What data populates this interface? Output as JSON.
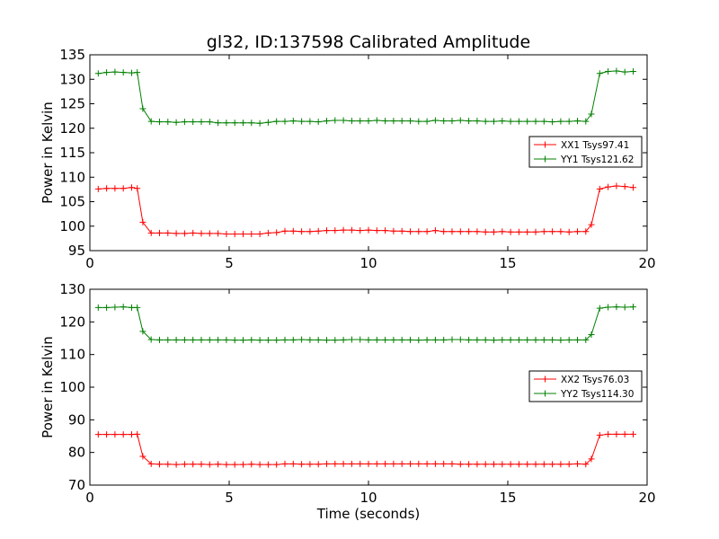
{
  "title": "gl32, ID:137598 Calibrated Amplitude",
  "chart_data": [
    {
      "type": "line",
      "title": "gl32, ID:137598 Calibrated Amplitude",
      "xlabel": "",
      "ylabel": "Power in Kelvin",
      "xlim": [
        0,
        20
      ],
      "ylim": [
        95,
        135
      ],
      "xticks": [
        0,
        5,
        10,
        15,
        20
      ],
      "yticks": [
        95,
        100,
        105,
        110,
        115,
        120,
        125,
        130,
        135
      ],
      "legend_position": "center-right",
      "grid": false,
      "x": [
        0.3,
        0.6,
        0.9,
        1.2,
        1.5,
        1.7,
        1.9,
        2.2,
        2.5,
        2.8,
        3.1,
        3.4,
        3.7,
        4.0,
        4.3,
        4.6,
        4.9,
        5.2,
        5.5,
        5.8,
        6.1,
        6.4,
        6.7,
        7.0,
        7.3,
        7.6,
        7.9,
        8.2,
        8.5,
        8.8,
        9.1,
        9.4,
        9.7,
        10.0,
        10.3,
        10.6,
        10.9,
        11.2,
        11.5,
        11.8,
        12.1,
        12.4,
        12.7,
        13.0,
        13.3,
        13.6,
        13.9,
        14.2,
        14.5,
        14.8,
        15.1,
        15.4,
        15.7,
        16.0,
        16.3,
        16.6,
        16.9,
        17.2,
        17.5,
        17.8,
        18.0,
        18.3,
        18.6,
        18.9,
        19.2,
        19.5
      ],
      "series": [
        {
          "name": "XX1 Tsys97.41",
          "color": "#ff0000",
          "values": [
            107.6,
            107.7,
            107.7,
            107.7,
            107.9,
            107.7,
            100.8,
            98.6,
            98.6,
            98.6,
            98.5,
            98.5,
            98.6,
            98.5,
            98.5,
            98.5,
            98.4,
            98.4,
            98.4,
            98.4,
            98.4,
            98.6,
            98.7,
            99.0,
            99.0,
            98.9,
            98.9,
            99.0,
            99.1,
            99.1,
            99.2,
            99.2,
            99.1,
            99.2,
            99.1,
            99.1,
            99.0,
            99.0,
            98.9,
            98.9,
            98.9,
            99.1,
            98.9,
            98.9,
            98.9,
            98.9,
            98.9,
            98.8,
            98.8,
            98.9,
            98.8,
            98.8,
            98.8,
            98.8,
            98.9,
            98.9,
            98.9,
            98.8,
            98.9,
            98.9,
            100.3,
            107.6,
            108.0,
            108.2,
            108.1,
            107.9
          ]
        },
        {
          "name": "YY1 Tsys121.62",
          "color": "#008000",
          "values": [
            131.2,
            131.4,
            131.5,
            131.4,
            131.3,
            131.4,
            124.0,
            121.4,
            121.3,
            121.3,
            121.2,
            121.3,
            121.3,
            121.3,
            121.3,
            121.1,
            121.1,
            121.1,
            121.1,
            121.1,
            121.0,
            121.2,
            121.4,
            121.4,
            121.5,
            121.4,
            121.4,
            121.3,
            121.5,
            121.6,
            121.6,
            121.5,
            121.5,
            121.5,
            121.6,
            121.5,
            121.5,
            121.5,
            121.5,
            121.4,
            121.4,
            121.6,
            121.5,
            121.5,
            121.6,
            121.5,
            121.5,
            121.4,
            121.4,
            121.5,
            121.4,
            121.4,
            121.4,
            121.4,
            121.4,
            121.3,
            121.4,
            121.4,
            121.5,
            121.4,
            122.9,
            131.2,
            131.6,
            131.7,
            131.5,
            131.6
          ]
        }
      ]
    },
    {
      "type": "line",
      "title": "",
      "xlabel": "Time (seconds)",
      "ylabel": "Power in Kelvin",
      "xlim": [
        0,
        20
      ],
      "ylim": [
        70,
        130
      ],
      "xticks": [
        0,
        5,
        10,
        15,
        20
      ],
      "yticks": [
        70,
        80,
        90,
        100,
        110,
        120,
        130
      ],
      "legend_position": "center-right",
      "grid": false,
      "x": [
        0.3,
        0.6,
        0.9,
        1.2,
        1.5,
        1.7,
        1.9,
        2.2,
        2.5,
        2.8,
        3.1,
        3.4,
        3.7,
        4.0,
        4.3,
        4.6,
        4.9,
        5.2,
        5.5,
        5.8,
        6.1,
        6.4,
        6.7,
        7.0,
        7.3,
        7.6,
        7.9,
        8.2,
        8.5,
        8.8,
        9.1,
        9.4,
        9.7,
        10.0,
        10.3,
        10.6,
        10.9,
        11.2,
        11.5,
        11.8,
        12.1,
        12.4,
        12.7,
        13.0,
        13.3,
        13.6,
        13.9,
        14.2,
        14.5,
        14.8,
        15.1,
        15.4,
        15.7,
        16.0,
        16.3,
        16.6,
        16.9,
        17.2,
        17.5,
        17.8,
        18.0,
        18.3,
        18.6,
        18.9,
        19.2,
        19.5
      ],
      "series": [
        {
          "name": "XX2 Tsys76.03",
          "color": "#ff0000",
          "values": [
            85.5,
            85.5,
            85.5,
            85.5,
            85.5,
            85.6,
            78.8,
            76.5,
            76.4,
            76.4,
            76.3,
            76.4,
            76.4,
            76.4,
            76.3,
            76.4,
            76.3,
            76.3,
            76.3,
            76.4,
            76.3,
            76.3,
            76.3,
            76.5,
            76.5,
            76.4,
            76.4,
            76.4,
            76.5,
            76.5,
            76.5,
            76.5,
            76.5,
            76.5,
            76.5,
            76.5,
            76.5,
            76.5,
            76.5,
            76.5,
            76.5,
            76.5,
            76.5,
            76.5,
            76.4,
            76.4,
            76.4,
            76.4,
            76.4,
            76.4,
            76.4,
            76.4,
            76.4,
            76.4,
            76.4,
            76.4,
            76.4,
            76.4,
            76.5,
            76.4,
            78.0,
            85.3,
            85.6,
            85.6,
            85.6,
            85.6
          ]
        },
        {
          "name": "YY2 Tsys114.30",
          "color": "#008000",
          "values": [
            124.4,
            124.4,
            124.5,
            124.6,
            124.4,
            124.4,
            117.1,
            114.6,
            114.5,
            114.5,
            114.5,
            114.5,
            114.5,
            114.5,
            114.5,
            114.5,
            114.5,
            114.4,
            114.4,
            114.5,
            114.4,
            114.4,
            114.4,
            114.5,
            114.5,
            114.6,
            114.5,
            114.5,
            114.4,
            114.4,
            114.5,
            114.6,
            114.6,
            114.5,
            114.5,
            114.5,
            114.5,
            114.5,
            114.5,
            114.4,
            114.5,
            114.5,
            114.5,
            114.6,
            114.6,
            114.5,
            114.5,
            114.5,
            114.4,
            114.5,
            114.5,
            114.5,
            114.5,
            114.5,
            114.5,
            114.5,
            114.4,
            114.5,
            114.5,
            114.5,
            116.1,
            124.2,
            124.5,
            124.6,
            124.5,
            124.6
          ]
        }
      ]
    }
  ]
}
